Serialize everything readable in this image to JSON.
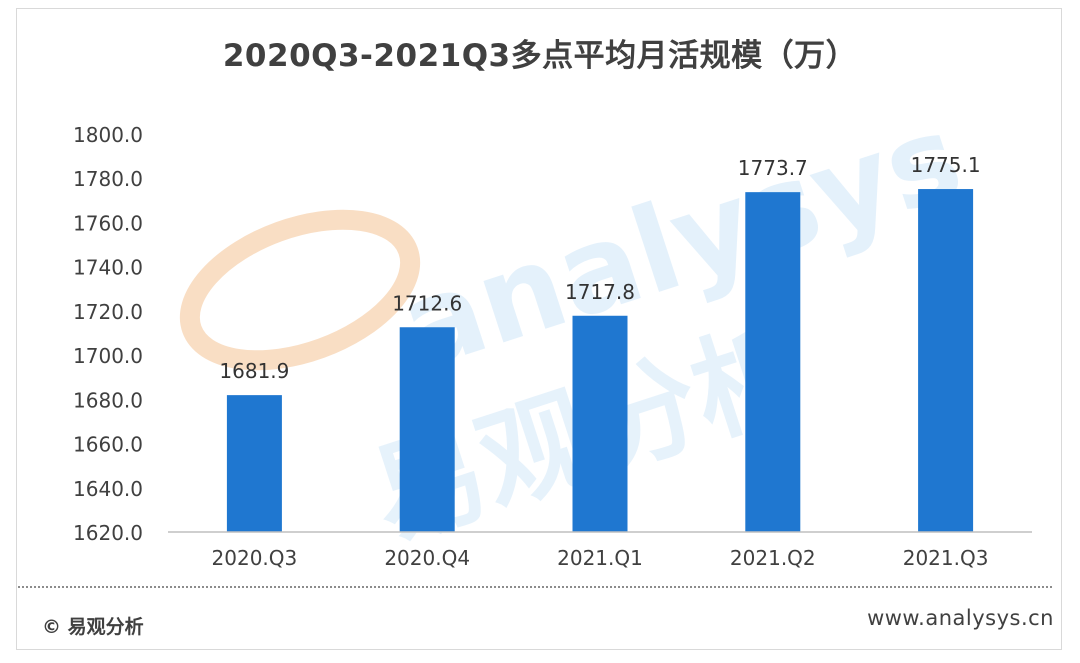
{
  "chart_data": {
    "type": "bar",
    "title": "2020Q3-2021Q3多点平均月活规模（万）",
    "categories": [
      "2020.Q3",
      "2020.Q4",
      "2021.Q1",
      "2021.Q2",
      "2021.Q3"
    ],
    "values": [
      1681.9,
      1712.6,
      1717.8,
      1773.7,
      1775.1
    ],
    "data_labels": [
      "1681.9",
      "1712.6",
      "1717.8",
      "1773.7",
      "1775.1"
    ],
    "yticks": [
      "1620.0",
      "1640.0",
      "1660.0",
      "1680.0",
      "1700.0",
      "1720.0",
      "1740.0",
      "1760.0",
      "1780.0",
      "1800.0"
    ],
    "ylim": [
      1620,
      1800
    ],
    "xlabel": "",
    "ylabel": "",
    "grid": false,
    "bar_color": "#1f77d0"
  },
  "footer": {
    "source": "© 易观分析",
    "website": "www.analysys.cn"
  },
  "watermark": {
    "latin": "analysys",
    "cjk": "易观分析"
  }
}
